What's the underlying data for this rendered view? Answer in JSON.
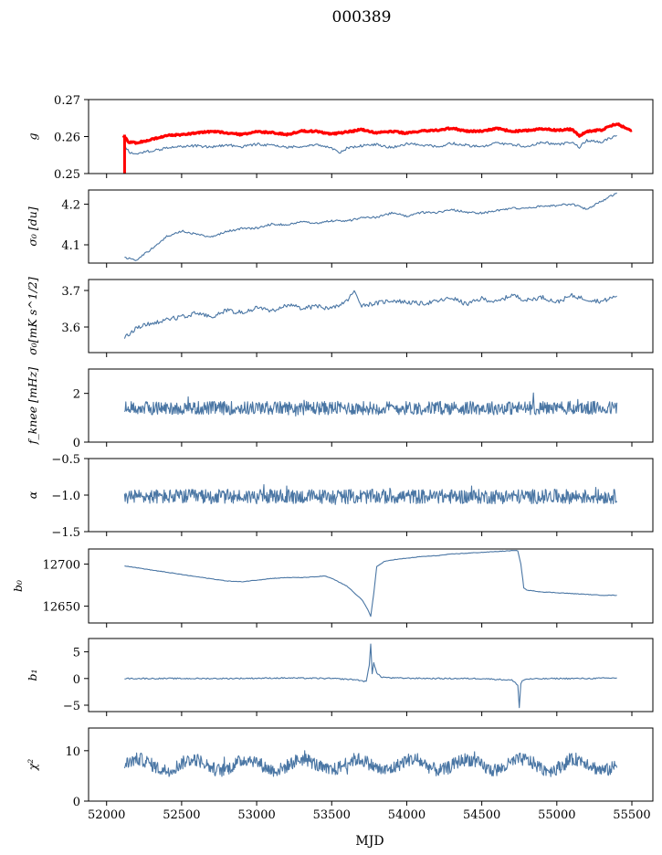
{
  "title": "000389",
  "colors": {
    "series": "#4a76a4",
    "reference": "#ff0000",
    "axes": "#000000",
    "background": "#ffffff"
  },
  "x_axis": {
    "label": "MJD",
    "lim": [
      51880,
      55640
    ],
    "ticks": [
      52000,
      52500,
      53000,
      53500,
      54000,
      54500,
      55000,
      55500
    ],
    "tick_labels": [
      "52000",
      "52500",
      "53000",
      "53500",
      "54000",
      "54500",
      "55000",
      "55500"
    ]
  },
  "chart_data": [
    {
      "type": "line",
      "id": "g",
      "ylabel": "g",
      "ylim": [
        0.25,
        0.27
      ],
      "yticks": [
        0.25,
        0.26,
        0.27
      ],
      "ytick_labels": [
        "0.25",
        "0.26",
        "0.27"
      ],
      "series": [
        {
          "role": "blue",
          "x": [
            52120,
            52150,
            52200,
            52250,
            52300,
            52400,
            52500,
            52600,
            52700,
            52800,
            52900,
            53000,
            53100,
            53200,
            53300,
            53400,
            53500,
            53550,
            53600,
            53700,
            53800,
            53900,
            54000,
            54100,
            54200,
            54300,
            54400,
            54500,
            54600,
            54700,
            54800,
            54900,
            55000,
            55100,
            55150,
            55200,
            55300,
            55350,
            55400
          ],
          "y": [
            0.2577,
            0.2558,
            0.2553,
            0.2558,
            0.2562,
            0.2568,
            0.2573,
            0.2575,
            0.2571,
            0.2578,
            0.2572,
            0.258,
            0.2576,
            0.2571,
            0.2574,
            0.2578,
            0.257,
            0.2555,
            0.2568,
            0.2575,
            0.2579,
            0.257,
            0.258,
            0.2578,
            0.2572,
            0.2582,
            0.2577,
            0.2571,
            0.2583,
            0.2578,
            0.2574,
            0.2585,
            0.2579,
            0.2584,
            0.257,
            0.259,
            0.2586,
            0.2595,
            0.2603
          ]
        },
        {
          "role": "red",
          "x": [
            52110,
            52150,
            52200,
            52250,
            52300,
            52400,
            52500,
            52600,
            52700,
            52800,
            52900,
            53000,
            53100,
            53200,
            53300,
            53400,
            53500,
            53600,
            53700,
            53800,
            53900,
            54000,
            54100,
            54200,
            54300,
            54400,
            54500,
            54600,
            54700,
            54800,
            54900,
            55000,
            55100,
            55150,
            55200,
            55300,
            55350,
            55400,
            55500
          ],
          "y": [
            0.2602,
            0.2585,
            0.2583,
            0.2588,
            0.2592,
            0.2603,
            0.2605,
            0.261,
            0.2614,
            0.261,
            0.2605,
            0.2613,
            0.2611,
            0.2605,
            0.2615,
            0.2614,
            0.2607,
            0.2612,
            0.2619,
            0.261,
            0.2614,
            0.2609,
            0.2615,
            0.2617,
            0.2623,
            0.2614,
            0.2615,
            0.2622,
            0.2614,
            0.2616,
            0.2621,
            0.2617,
            0.262,
            0.2602,
            0.2614,
            0.2618,
            0.2628,
            0.2634,
            0.2617
          ]
        }
      ]
    },
    {
      "type": "line",
      "id": "sigma0_du",
      "ylabel": "σ₀ [du]",
      "ylim": [
        4.055,
        4.235
      ],
      "yticks": [
        4.1,
        4.2
      ],
      "ytick_labels": [
        "4.1",
        "4.2"
      ],
      "series": [
        {
          "role": "blue",
          "x": [
            52120,
            52200,
            52300,
            52400,
            52500,
            52600,
            52700,
            52800,
            52900,
            53000,
            53100,
            53200,
            53300,
            53400,
            53500,
            53600,
            53700,
            53800,
            53900,
            54000,
            54100,
            54200,
            54300,
            54400,
            54500,
            54600,
            54700,
            54800,
            54900,
            55000,
            55100,
            55200,
            55300,
            55400
          ],
          "y": [
            4.068,
            4.063,
            4.09,
            4.12,
            4.134,
            4.126,
            4.12,
            4.133,
            4.14,
            4.141,
            4.151,
            4.149,
            4.156,
            4.154,
            4.159,
            4.158,
            4.167,
            4.168,
            4.178,
            4.171,
            4.18,
            4.179,
            4.187,
            4.18,
            4.178,
            4.184,
            4.19,
            4.19,
            4.195,
            4.197,
            4.2,
            4.188,
            4.208,
            4.228
          ]
        }
      ]
    },
    {
      "type": "line",
      "id": "sigma0_mk",
      "ylabel": "σ₀[mK s^1/2]",
      "ylim": [
        3.53,
        3.73
      ],
      "yticks": [
        3.6,
        3.7
      ],
      "ytick_labels": [
        "3.6",
        "3.7"
      ],
      "series": [
        {
          "role": "blue",
          "x": [
            52120,
            52200,
            52300,
            52400,
            52500,
            52600,
            52700,
            52800,
            52900,
            53000,
            53100,
            53200,
            53300,
            53400,
            53500,
            53600,
            53650,
            53700,
            53800,
            53900,
            54000,
            54100,
            54200,
            54300,
            54400,
            54500,
            54600,
            54700,
            54800,
            54900,
            55000,
            55100,
            55200,
            55300,
            55400
          ],
          "y": [
            3.571,
            3.598,
            3.61,
            3.62,
            3.628,
            3.638,
            3.628,
            3.645,
            3.64,
            3.652,
            3.644,
            3.66,
            3.652,
            3.656,
            3.65,
            3.671,
            3.697,
            3.66,
            3.665,
            3.673,
            3.668,
            3.664,
            3.67,
            3.68,
            3.662,
            3.678,
            3.668,
            3.688,
            3.673,
            3.682,
            3.668,
            3.686,
            3.676,
            3.67,
            3.685
          ]
        }
      ]
    },
    {
      "type": "line",
      "id": "fknee",
      "ylabel": "f_knee [mHz]",
      "ylim": [
        0,
        3
      ],
      "yticks": [
        0,
        2
      ],
      "ytick_labels": [
        "0",
        "2"
      ],
      "series": [
        {
          "role": "blue",
          "noisy": true,
          "x_range": [
            52120,
            55400
          ],
          "mean": 1.4,
          "amplitude": 0.28
        }
      ]
    },
    {
      "type": "line",
      "id": "alpha",
      "ylabel": "α",
      "ylim": [
        -1.5,
        -0.5
      ],
      "yticks": [
        -1.5,
        -1.0,
        -0.5
      ],
      "ytick_labels": [
        "−1.5",
        "−1.0",
        "−0.5"
      ],
      "series": [
        {
          "role": "blue",
          "noisy": true,
          "x_range": [
            52120,
            55400
          ],
          "mean": -1.02,
          "amplitude": 0.1
        }
      ]
    },
    {
      "type": "line",
      "id": "b0",
      "ylabel": "b₀",
      "ylim": [
        12630,
        12718
      ],
      "yticks": [
        12650,
        12700
      ],
      "ytick_labels": [
        "12650",
        "12700"
      ],
      "series": [
        {
          "role": "blue",
          "x": [
            52120,
            52300,
            52600,
            52800,
            52900,
            53000,
            53100,
            53200,
            53300,
            53400,
            53450,
            53500,
            53600,
            53700,
            53740,
            53760,
            53780,
            53800,
            53850,
            53900,
            54000,
            54100,
            54200,
            54300,
            54400,
            54500,
            54600,
            54700,
            54740,
            54760,
            54780,
            54800,
            54900,
            55000,
            55100,
            55200,
            55300,
            55400
          ],
          "y": [
            12698,
            12693,
            12685,
            12680,
            12679,
            12681,
            12683,
            12684,
            12684,
            12685,
            12686,
            12683,
            12674,
            12658,
            12646,
            12638,
            12665,
            12697,
            12703,
            12705,
            12707,
            12709,
            12710,
            12712,
            12713,
            12714,
            12715,
            12716,
            12716,
            12700,
            12672,
            12669,
            12667,
            12666,
            12665,
            12664,
            12663,
            12663
          ]
        }
      ]
    },
    {
      "type": "line",
      "id": "b1",
      "ylabel": "b₁",
      "ylim": [
        -6.2,
        7.5
      ],
      "yticks": [
        -5,
        0,
        5
      ],
      "ytick_labels": [
        "−5",
        "0",
        "5"
      ],
      "series": [
        {
          "role": "blue",
          "x": [
            52120,
            52400,
            52800,
            53200,
            53500,
            53650,
            53700,
            53730,
            53750,
            53760,
            53770,
            53780,
            53800,
            53830,
            53900,
            54200,
            54500,
            54700,
            54740,
            54750,
            54760,
            54770,
            54800,
            55000,
            55200,
            55400
          ],
          "y": [
            0,
            0,
            0,
            0.1,
            0,
            -0.2,
            -0.4,
            -0.6,
            2.5,
            6.5,
            1.0,
            3.0,
            1.0,
            0.3,
            0.1,
            0.0,
            0.0,
            -0.3,
            -1.2,
            -5.5,
            -1.0,
            -0.4,
            -0.1,
            0,
            0,
            0.1
          ]
        }
      ]
    },
    {
      "type": "line",
      "id": "chi2",
      "ylabel": "χ²",
      "ylim": [
        0,
        14.5
      ],
      "yticks": [
        0,
        10
      ],
      "ytick_labels": [
        "0",
        "10"
      ],
      "series": [
        {
          "role": "blue",
          "noisy": true,
          "x_range": [
            52120,
            55400
          ],
          "mean": 7.2,
          "amplitude": 2.4,
          "period": 365
        }
      ]
    }
  ]
}
